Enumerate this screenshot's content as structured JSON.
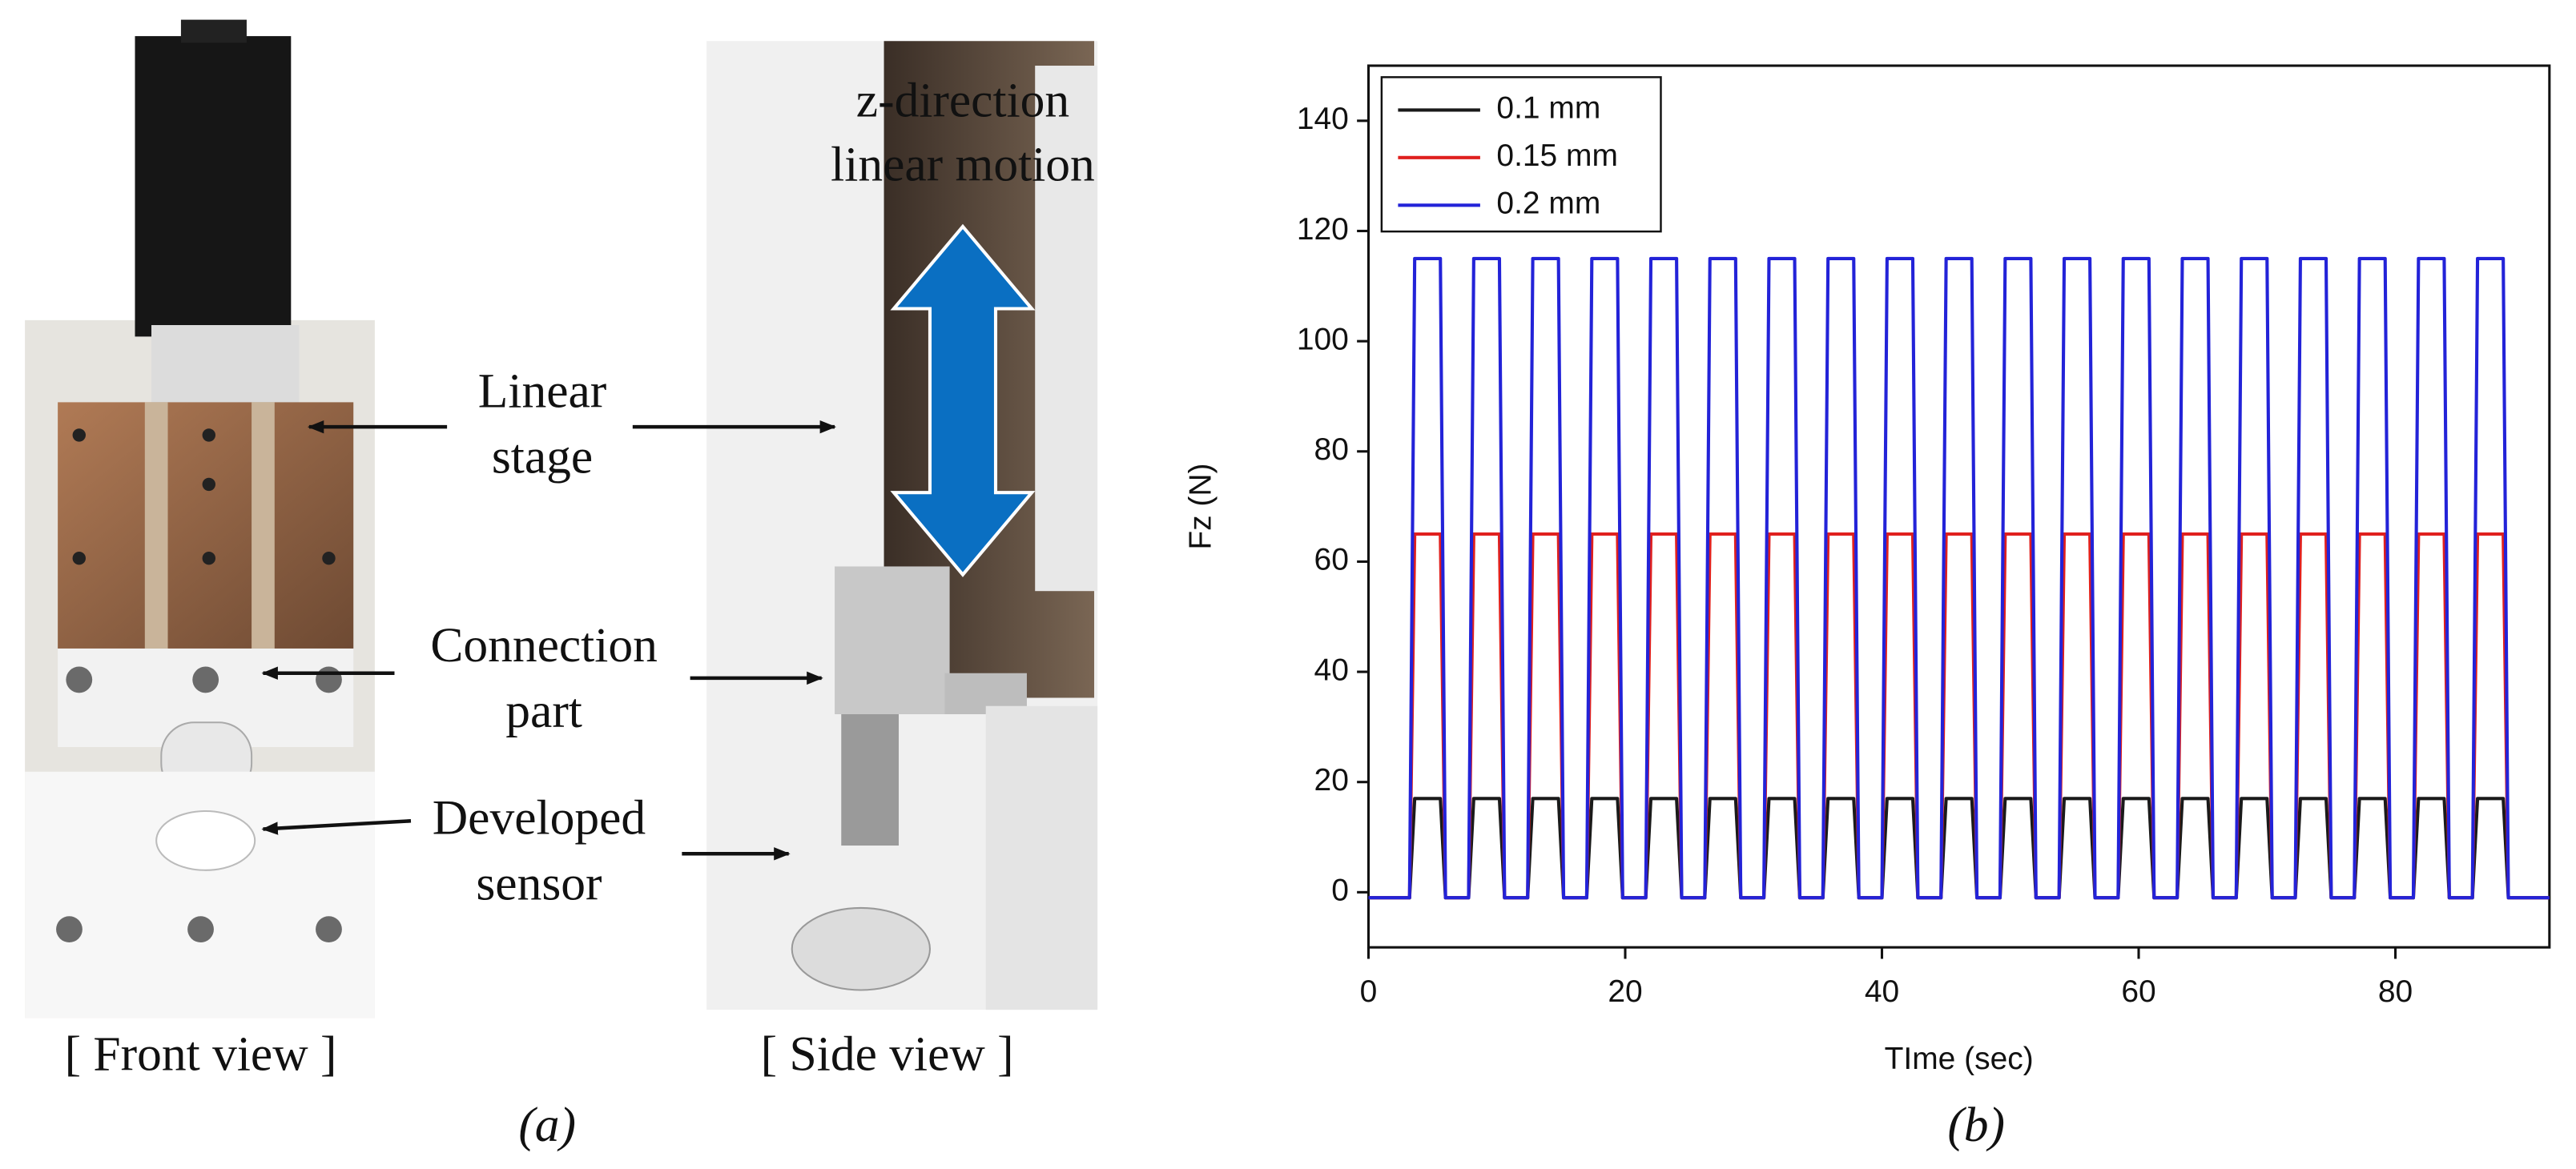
{
  "panel_a": {
    "annotation": [
      "z-direction",
      "linear motion"
    ],
    "labels": [
      [
        "Linear",
        "stage"
      ],
      [
        "Connection",
        "part"
      ],
      [
        "Developed",
        "sensor"
      ]
    ],
    "captions": [
      "[ Front view ]",
      "[ Side view ]"
    ],
    "panel_label": "(a)"
  },
  "panel_b_label": "(b)",
  "chart_data": {
    "type": "line",
    "x_label": "TIme (sec)",
    "y_label": "Fz (N)",
    "xlim": [
      0,
      92
    ],
    "ylim": [
      -10,
      150
    ],
    "xticks": [
      0,
      20,
      40,
      60,
      80
    ],
    "yticks": [
      0,
      20,
      40,
      60,
      80,
      100,
      120,
      140
    ],
    "legend": "upper-left",
    "x": [
      0,
      3.2,
      3.6,
      5.6,
      6.0,
      7.8,
      8.2,
      10.2,
      10.6,
      12.4,
      12.8,
      14.8,
      15.2,
      17.0,
      17.4,
      19.4,
      19.8,
      21.6,
      22.0,
      24.0,
      24.4,
      26.2,
      26.6,
      28.6,
      29.0,
      30.8,
      31.2,
      33.2,
      33.6,
      35.4,
      35.8,
      37.8,
      38.2,
      40.0,
      40.4,
      42.4,
      42.8,
      44.6,
      45.0,
      47.0,
      47.4,
      49.2,
      49.6,
      51.6,
      52.0,
      53.8,
      54.2,
      56.2,
      56.6,
      58.4,
      58.8,
      60.8,
      61.2,
      63.0,
      63.4,
      65.4,
      65.8,
      67.6,
      68.0,
      70.0,
      70.4,
      72.2,
      72.6,
      74.6,
      75.0,
      76.8,
      77.2,
      79.2,
      79.6,
      81.4,
      81.8,
      83.8,
      84.2,
      86.0,
      86.4,
      88.4,
      88.8,
      92
    ],
    "series": [
      {
        "name": "0.1 mm",
        "color": "#1a1a1a",
        "values": [
          -1,
          -1,
          17,
          17,
          -1,
          -1,
          17,
          17,
          -1,
          -1,
          17,
          17,
          -1,
          -1,
          17,
          17,
          -1,
          -1,
          17,
          17,
          -1,
          -1,
          17,
          17,
          -1,
          -1,
          17,
          17,
          -1,
          -1,
          17,
          17,
          -1,
          -1,
          17,
          17,
          -1,
          -1,
          17,
          17,
          -1,
          -1,
          17,
          17,
          -1,
          -1,
          17,
          17,
          -1,
          -1,
          17,
          17,
          -1,
          -1,
          17,
          17,
          -1,
          -1,
          17,
          17,
          -1,
          -1,
          17,
          17,
          -1,
          -1,
          17,
          17,
          -1,
          -1,
          17,
          17,
          -1,
          -1,
          17,
          17,
          -1,
          -1
        ]
      },
      {
        "name": "0.15 mm",
        "color": "#e0201e",
        "values": [
          -1,
          -1,
          65,
          65,
          -1,
          -1,
          65,
          65,
          -1,
          -1,
          65,
          65,
          -1,
          -1,
          65,
          65,
          -1,
          -1,
          65,
          65,
          -1,
          -1,
          65,
          65,
          -1,
          -1,
          65,
          65,
          -1,
          -1,
          65,
          65,
          -1,
          -1,
          65,
          65,
          -1,
          -1,
          65,
          65,
          -1,
          -1,
          65,
          65,
          -1,
          -1,
          65,
          65,
          -1,
          -1,
          65,
          65,
          -1,
          -1,
          65,
          65,
          -1,
          -1,
          65,
          65,
          -1,
          -1,
          65,
          65,
          -1,
          -1,
          65,
          65,
          -1,
          -1,
          65,
          65,
          -1,
          -1,
          65,
          65,
          -1,
          -1
        ]
      },
      {
        "name": "0.2 mm",
        "color": "#2323d8",
        "values": [
          -1,
          -1,
          115,
          115,
          -1,
          -1,
          115,
          115,
          -1,
          -1,
          115,
          115,
          -1,
          -1,
          115,
          115,
          -1,
          -1,
          115,
          115,
          -1,
          -1,
          115,
          115,
          -1,
          -1,
          115,
          115,
          -1,
          -1,
          115,
          115,
          -1,
          -1,
          115,
          115,
          -1,
          -1,
          115,
          115,
          -1,
          -1,
          115,
          115,
          -1,
          -1,
          115,
          115,
          -1,
          -1,
          115,
          115,
          -1,
          -1,
          115,
          115,
          -1,
          -1,
          115,
          115,
          -1,
          -1,
          115,
          115,
          -1,
          -1,
          115,
          115,
          -1,
          -1,
          115,
          115,
          -1,
          -1,
          115,
          115,
          -1,
          -1
        ]
      }
    ]
  }
}
